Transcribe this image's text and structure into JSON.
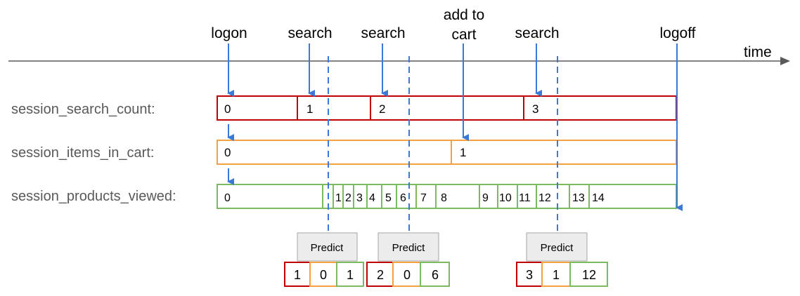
{
  "colors": {
    "search": "#c00000",
    "cart": "#f4a240",
    "products": "#7cba5f",
    "arrow": "#3c78d8",
    "timeline": "#595959",
    "predict_fill": "#ececec",
    "predict_stroke": "#a6a6a6"
  },
  "timeline": {
    "label": "time"
  },
  "events": [
    {
      "lines": [
        "logon"
      ]
    },
    {
      "lines": [
        "search"
      ]
    },
    {
      "lines": [
        "search"
      ]
    },
    {
      "lines": [
        "add to",
        "cart"
      ]
    },
    {
      "lines": [
        "search"
      ]
    },
    {
      "lines": [
        "logoff"
      ]
    }
  ],
  "rows": [
    {
      "label": "session_search_count:",
      "values": [
        "0",
        "1",
        "2",
        "3"
      ]
    },
    {
      "label": "session_items_in_cart:",
      "values": [
        "0",
        "1"
      ]
    },
    {
      "label": "session_products_viewed:",
      "values": [
        "0",
        "1",
        "2",
        "3",
        "4",
        "5",
        "6",
        "7",
        "8",
        "9",
        "10",
        "11",
        "12",
        "13",
        "14"
      ]
    }
  ],
  "predictions": [
    {
      "label": "Predict",
      "outputs": [
        "1",
        "0",
        "1"
      ]
    },
    {
      "label": "Predict",
      "outputs": [
        "2",
        "0",
        "6"
      ]
    },
    {
      "label": "Predict",
      "outputs": [
        "3",
        "1",
        "12"
      ]
    }
  ]
}
